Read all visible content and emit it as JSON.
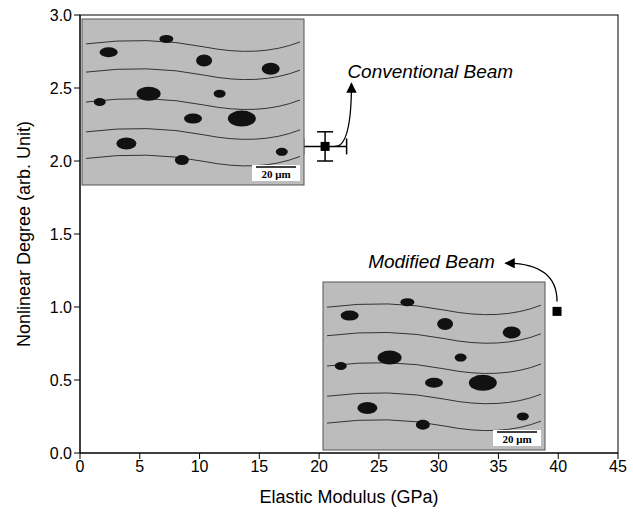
{
  "chart_data": {
    "type": "scatter",
    "x_label": "Elastic Modulus (GPa)",
    "y_label": "Nonlinear Degree (arb. Unit)",
    "x": [
      20.5,
      39.9
    ],
    "y": [
      2.1,
      0.97
    ],
    "x_errors": [
      1.8,
      0
    ],
    "y_errors": [
      0.1,
      0
    ],
    "color": "#000000",
    "marker": "square",
    "grid": false,
    "xlim": [
      0,
      45
    ],
    "xticks": [
      0,
      5,
      10,
      15,
      20,
      25,
      30,
      35,
      40,
      45
    ],
    "ylim": [
      0,
      3
    ],
    "yticks": [
      {
        "value": 0,
        "label": "0.0"
      },
      0.5,
      {
        "value": 1,
        "label": "1.0"
      },
      1.5,
      {
        "value": 2,
        "label": "2.0"
      },
      2.5,
      {
        "value": 3,
        "label": "3.0"
      }
    ],
    "annotations": [
      {
        "text": "Conventional Beam",
        "x": 29.3,
        "y": 2.6
      },
      {
        "text": "Modified Beam",
        "x": 29.4,
        "y": 1.3
      }
    ],
    "insets": [
      {
        "scale_bar": "20 μm"
      },
      {
        "scale_bar": "20 μm"
      }
    ]
  }
}
